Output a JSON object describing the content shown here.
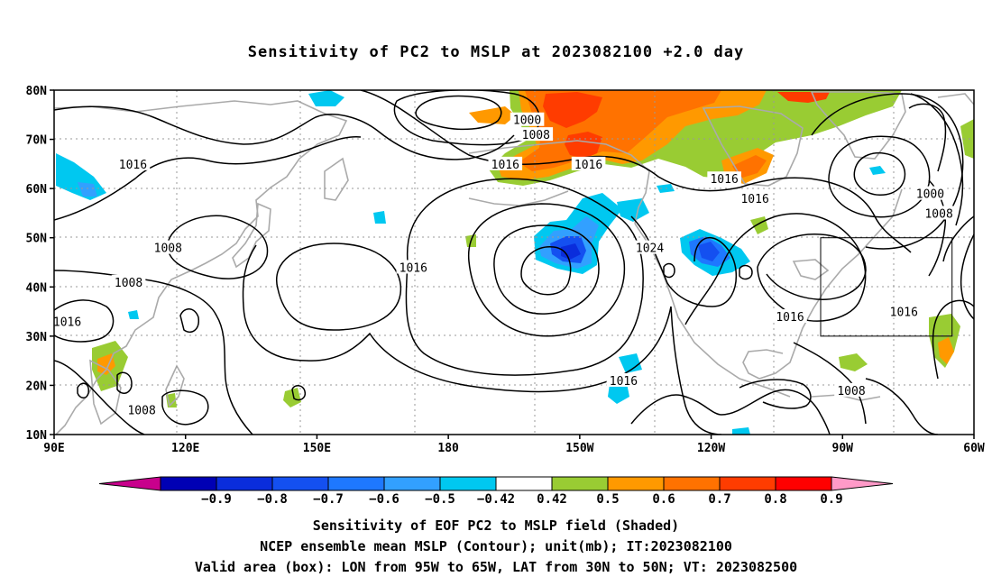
{
  "title": "Sensitivity of PC2 to MSLP at 2023082100 +2.0 day",
  "map": {
    "lon_range": [
      90,
      300
    ],
    "lat_range": [
      10,
      80
    ],
    "lat_ticks": [
      "10N",
      "20N",
      "30N",
      "40N",
      "50N",
      "60N",
      "70N",
      "80N"
    ],
    "lon_ticks": [
      "90E",
      "120E",
      "150E",
      "180",
      "150W",
      "120W",
      "90W",
      "60W"
    ],
    "grid": "dotted",
    "valid_box": {
      "lon_from": "95W",
      "lon_to": "65W",
      "lat_from": "30N",
      "lat_to": "50N"
    },
    "contour_labels": [
      {
        "text": "1000",
        "lon": 198,
        "lat": 74
      },
      {
        "text": "1008",
        "lon": 200,
        "lat": 71
      },
      {
        "text": "1016",
        "lon": 108,
        "lat": 65
      },
      {
        "text": "1016",
        "lon": 193,
        "lat": 65
      },
      {
        "text": "1016",
        "lon": 212,
        "lat": 65
      },
      {
        "text": "1016",
        "lon": 243,
        "lat": 62
      },
      {
        "text": "1016",
        "lon": 250,
        "lat": 58
      },
      {
        "text": "1000",
        "lon": 290,
        "lat": 59
      },
      {
        "text": "1008",
        "lon": 292,
        "lat": 55
      },
      {
        "text": "1008",
        "lon": 116,
        "lat": 48
      },
      {
        "text": "1016",
        "lon": 172,
        "lat": 44
      },
      {
        "text": "1024",
        "lon": 226,
        "lat": 48
      },
      {
        "text": "1008",
        "lon": 107,
        "lat": 41
      },
      {
        "text": "1016",
        "lon": 93,
        "lat": 33
      },
      {
        "text": "1016",
        "lon": 258,
        "lat": 34
      },
      {
        "text": "1016",
        "lon": 284,
        "lat": 35
      },
      {
        "text": "1016",
        "lon": 220,
        "lat": 21
      },
      {
        "text": "1008",
        "lon": 110,
        "lat": 15
      },
      {
        "text": "1008",
        "lon": 272,
        "lat": 19
      }
    ]
  },
  "colorbar": {
    "labels": [
      "−0.9",
      "−0.8",
      "−0.7",
      "−0.6",
      "−0.5",
      "−0.42",
      "0.42",
      "0.5",
      "0.6",
      "0.7",
      "0.8",
      "0.9"
    ],
    "colors": [
      "#c8008c",
      "#0000b4",
      "#0a2ddc",
      "#1450f0",
      "#1e78ff",
      "#32a0ff",
      "#00c8f0",
      "#ffffff",
      "#99cc33",
      "#ff9900",
      "#ff7200",
      "#ff3c00",
      "#ff0000",
      "#ff9ac8"
    ]
  },
  "captions": {
    "line1": "Sensitivity of EOF PC2 to MSLP field (Shaded)",
    "line2": "NCEP ensemble mean MSLP (Contour); unit(mb); IT:2023082100",
    "line3": "Valid area (box): LON from 95W to 65W, LAT from 30N to 50N; VT: 2023082500"
  }
}
